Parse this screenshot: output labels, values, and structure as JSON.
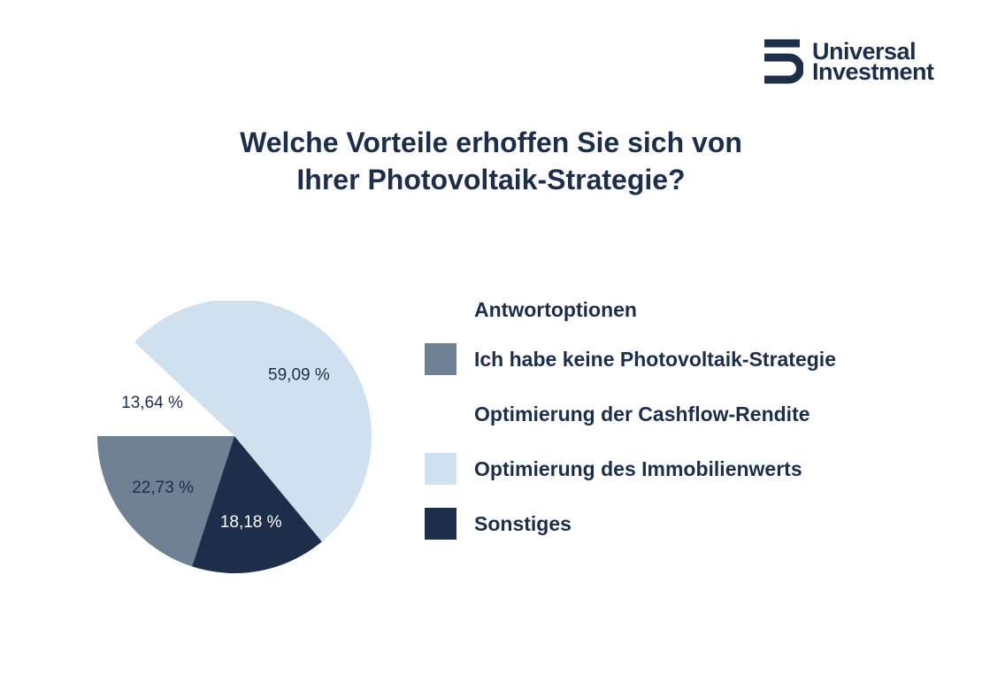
{
  "brand": {
    "line1": "Universal",
    "line2": "Investment"
  },
  "title_lines": [
    "Welche Vorteile erhoffen Sie sich von",
    "Ihrer Photovoltaik-Strategie?"
  ],
  "chart_data": {
    "type": "pie",
    "title": "Welche Vorteile erhoffen Sie sich von Ihrer Photovoltaik-Strategie?",
    "legend_title": "Antwortoptionen",
    "legend_position": "right",
    "slices": [
      {
        "label": "Ich habe keine Photovoltaik-Strategie",
        "value": 22.73,
        "value_label": "22,73 %",
        "color": "#6f8194",
        "label_color": "#1c2e4a"
      },
      {
        "label": "Optimierung der Cashflow-Rendite",
        "value": 13.64,
        "value_label": "13,64 %",
        "color": "#ffffff",
        "label_color": "#1c2e4a"
      },
      {
        "label": "Optimierung des Immobilienwerts",
        "value": 59.09,
        "value_label": "59,09 %",
        "color": "#cfe0ee",
        "label_color": "#1c2e4a"
      },
      {
        "label": "Sonstiges",
        "value": 18.18,
        "value_label": "18,18 %",
        "color": "#1c2e4a",
        "label_color": "#ffffff"
      }
    ]
  },
  "colors": {
    "navy": "#1c2e4a",
    "slate": "#6f8194",
    "light_blue": "#cfe0ee",
    "background": "#ffffff"
  }
}
